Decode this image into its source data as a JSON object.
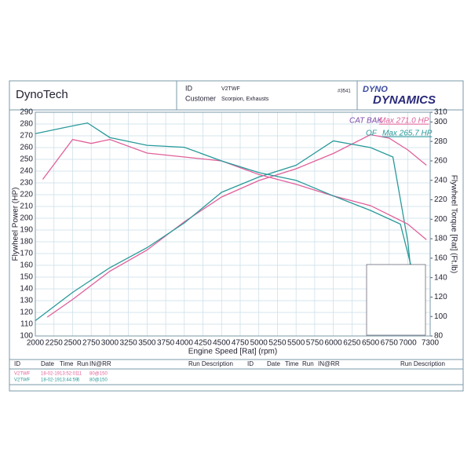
{
  "header": {
    "company": "DynoTech",
    "id_label": "ID",
    "id": "V2TWF",
    "customer_label": "Customer",
    "customer": "Scorpion, Exhausts",
    "number": "#3541",
    "logo_top": "DYNO",
    "logo_bottom": "DYNAMICS"
  },
  "chart_data": {
    "type": "line",
    "annotations": [
      {
        "text": "CAT BAK",
        "color": "#7a4aa8"
      },
      {
        "text": "Max 271.0 HP",
        "color": "#e0609a"
      },
      {
        "text": "OF",
        "color": "#2a9a9a"
      },
      {
        "text": "Max 265.7 HP",
        "color": "#2a9a9a"
      }
    ],
    "ylabel": "Flywheel Power (HP)",
    "y2label": "Flywheel Torque [Rat] (Ft.lb)",
    "xlabel": "Engine Speed [Rat] (rpm)",
    "xlim": [
      2000,
      7300
    ],
    "xticks": [
      2000,
      2250,
      2500,
      2750,
      3000,
      3250,
      3500,
      3750,
      4000,
      4250,
      4500,
      4750,
      5000,
      5250,
      5500,
      5750,
      6000,
      6250,
      6500,
      6750,
      7000,
      7300
    ],
    "ylim": [
      100,
      290
    ],
    "yticks": [
      100,
      110,
      120,
      130,
      140,
      150,
      160,
      170,
      180,
      190,
      200,
      210,
      220,
      230,
      240,
      250,
      260,
      270,
      280,
      290
    ],
    "y2lim": [
      80,
      310
    ],
    "y2ticks": [
      80,
      100,
      120,
      140,
      160,
      180,
      200,
      220,
      240,
      260,
      280,
      300,
      310
    ],
    "grid": true,
    "series": [
      {
        "name": "CAT BAK power",
        "color": "#e0609a",
        "x": [
          2160,
          2500,
          3000,
          3500,
          4000,
          4500,
          5000,
          5500,
          6000,
          6500,
          6750,
          7000,
          7250
        ],
        "values": [
          116,
          131,
          155,
          173,
          197,
          218,
          232,
          242,
          255,
          271,
          268,
          258,
          245
        ]
      },
      {
        "name": "OF power",
        "color": "#2a9a9a",
        "x": [
          2000,
          2500,
          3000,
          3500,
          4000,
          4500,
          5000,
          5500,
          6000,
          6500,
          6800,
          7000,
          7100
        ],
        "values": [
          113,
          137,
          158,
          175,
          196,
          222,
          235,
          245,
          265.7,
          260,
          252,
          180,
          120
        ]
      },
      {
        "name": "CAT BAK torque",
        "color": "#e0609a",
        "axis": "y2",
        "x": [
          2100,
          2500,
          2750,
          3000,
          3500,
          4000,
          4500,
          5000,
          5500,
          6000,
          6500,
          7000,
          7250
        ],
        "values": [
          241,
          282,
          278,
          282,
          268,
          264,
          260,
          246,
          236,
          224,
          214,
          195,
          179
        ]
      },
      {
        "name": "OF torque",
        "color": "#2a9a9a",
        "axis": "y2",
        "x": [
          2000,
          2500,
          2700,
          3000,
          3500,
          4000,
          4500,
          5000,
          5500,
          6000,
          6500,
          6900,
          7100
        ],
        "values": [
          288,
          296,
          299,
          284,
          276,
          274,
          260,
          248,
          240,
          224,
          209,
          195,
          135
        ]
      }
    ]
  },
  "run_table": {
    "headers": [
      "ID",
      "Date",
      "Time",
      "Run",
      "IN@RR",
      "Run Description",
      "ID",
      "Date",
      "Time",
      "Run",
      "IN@RR",
      "Run Description"
    ],
    "rows": [
      [
        "V2TWF",
        "18-02-19",
        "13:52:01",
        "11",
        "80@150"
      ],
      [
        "V2TWF",
        "18-02-19",
        "13:44:59",
        "6",
        "80@150"
      ]
    ]
  }
}
